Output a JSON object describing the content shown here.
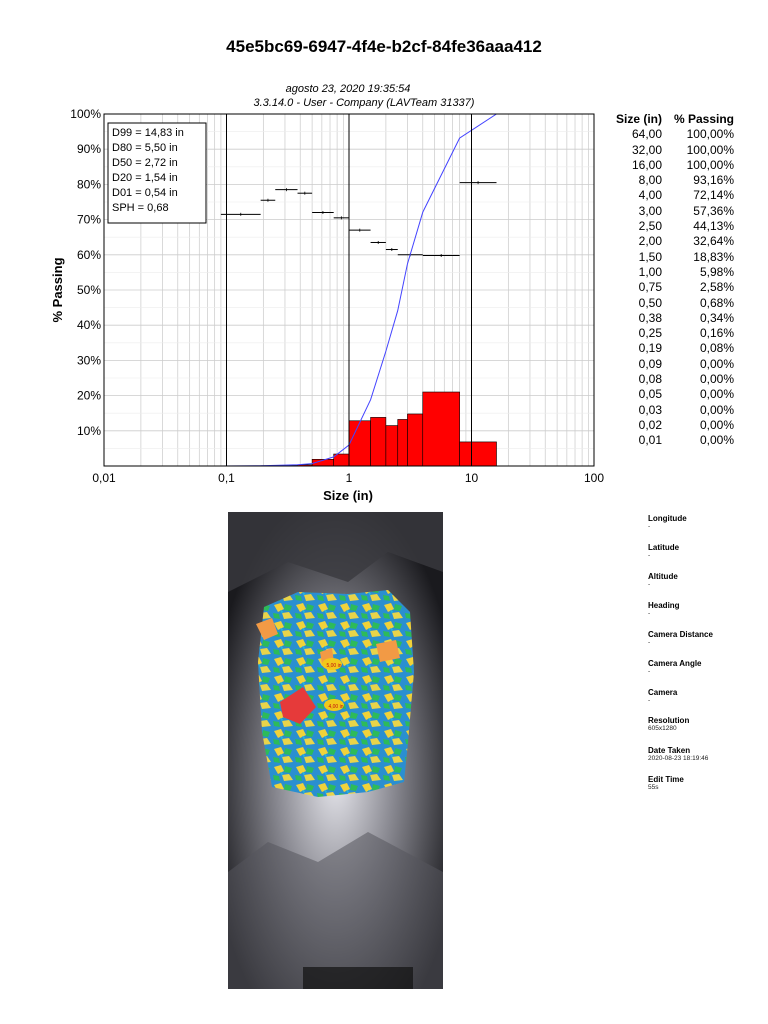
{
  "report": {
    "title": "45e5bc69-6947-4f4e-b2cf-84fe36aaa412",
    "date_line": "agosto 23, 2020 19:35:54",
    "version_line": "3.3.14.0  -  User - Company (LAVTeam 31337)"
  },
  "stats_box": [
    "D99 = 14,83 in",
    "D80 = 5,50 in",
    "D50 = 2,72 in",
    "D20 = 1,54 in",
    "D01 = 0,54 in",
    "SPH = 0,68"
  ],
  "table": {
    "col1": "Size (in)",
    "col2": "% Passing",
    "rows": [
      [
        "64,00",
        "100,00%"
      ],
      [
        "32,00",
        "100,00%"
      ],
      [
        "16,00",
        "100,00%"
      ],
      [
        "8,00",
        "93,16%"
      ],
      [
        "4,00",
        "72,14%"
      ],
      [
        "3,00",
        "57,36%"
      ],
      [
        "2,50",
        "44,13%"
      ],
      [
        "2,00",
        "32,64%"
      ],
      [
        "1,50",
        "18,83%"
      ],
      [
        "1,00",
        "5,98%"
      ],
      [
        "0,75",
        "2,58%"
      ],
      [
        "0,50",
        "0,68%"
      ],
      [
        "0,38",
        "0,34%"
      ],
      [
        "0,25",
        "0,16%"
      ],
      [
        "0,19",
        "0,08%"
      ],
      [
        "0,09",
        "0,00%"
      ],
      [
        "0,08",
        "0,00%"
      ],
      [
        "0,05",
        "0,00%"
      ],
      [
        "0,03",
        "0,00%"
      ],
      [
        "0,02",
        "0,00%"
      ],
      [
        "0,01",
        "0,00%"
      ]
    ]
  },
  "chart_data": {
    "type": "bar",
    "xlabel": "Size (in)",
    "ylabel": "% Passing",
    "xscale": "log",
    "xlim": [
      0.01,
      100
    ],
    "ylim": [
      0,
      100
    ],
    "x_ticks": [
      "0,01",
      "0,1",
      "1",
      "10",
      "100"
    ],
    "y_ticks": [
      "10%",
      "20%",
      "30%",
      "40%",
      "50%",
      "60%",
      "70%",
      "80%",
      "90%",
      "100%"
    ],
    "grid": true,
    "colors": {
      "bars": "#ff0000",
      "curve": "#4444ff",
      "marks": "#000000"
    },
    "cumulative_curve": {
      "x": [
        0.01,
        0.09,
        0.19,
        0.25,
        0.38,
        0.5,
        0.75,
        1.0,
        1.5,
        2.0,
        2.5,
        3.0,
        4.0,
        8.0,
        16.0,
        32.0,
        64.0
      ],
      "y": [
        0,
        0,
        0.08,
        0.16,
        0.34,
        0.68,
        2.58,
        5.98,
        18.83,
        32.64,
        44.13,
        57.36,
        72.14,
        93.16,
        100,
        100,
        100
      ]
    },
    "histogram": [
      {
        "x0": 0.19,
        "x1": 0.25,
        "value": 0.08
      },
      {
        "x0": 0.25,
        "x1": 0.38,
        "value": 0.18
      },
      {
        "x0": 0.38,
        "x1": 0.5,
        "value": 0.34
      },
      {
        "x0": 0.5,
        "x1": 0.75,
        "value": 1.9
      },
      {
        "x0": 0.75,
        "x1": 1.0,
        "value": 3.4
      },
      {
        "x0": 1.0,
        "x1": 1.5,
        "value": 12.85
      },
      {
        "x0": 1.5,
        "x1": 2.0,
        "value": 13.81
      },
      {
        "x0": 2.0,
        "x1": 2.5,
        "value": 11.49
      },
      {
        "x0": 2.5,
        "x1": 3.0,
        "value": 13.23
      },
      {
        "x0": 3.0,
        "x1": 4.0,
        "value": 14.78
      },
      {
        "x0": 4.0,
        "x1": 8.0,
        "value": 21.02
      },
      {
        "x0": 8.0,
        "x1": 16.0,
        "value": 6.84
      }
    ],
    "frequency_marks": [
      {
        "x0": 0.09,
        "x1": 0.19,
        "y": 71.5
      },
      {
        "x0": 0.19,
        "x1": 0.25,
        "y": 75.5
      },
      {
        "x0": 0.25,
        "x1": 0.38,
        "y": 78.5
      },
      {
        "x0": 0.38,
        "x1": 0.5,
        "y": 77.5
      },
      {
        "x0": 0.5,
        "x1": 0.75,
        "y": 72.0
      },
      {
        "x0": 0.75,
        "x1": 1.0,
        "y": 70.5
      },
      {
        "x0": 1.0,
        "x1": 1.5,
        "y": 67.0
      },
      {
        "x0": 1.5,
        "x1": 2.0,
        "y": 63.5
      },
      {
        "x0": 2.0,
        "x1": 2.5,
        "y": 61.5
      },
      {
        "x0": 2.5,
        "x1": 4.0,
        "y": 60.0
      },
      {
        "x0": 4.0,
        "x1": 8.0,
        "y": 59.8
      },
      {
        "x0": 8.0,
        "x1": 16.0,
        "y": 80.5
      }
    ],
    "reference_lines_x": [
      0.1,
      1,
      10
    ]
  },
  "metadata": [
    {
      "key": "Longitude",
      "value": "-"
    },
    {
      "key": "Latitude",
      "value": "-"
    },
    {
      "key": "Altitude",
      "value": "-"
    },
    {
      "key": "Heading",
      "value": "-"
    },
    {
      "key": "Camera Distance",
      "value": "-"
    },
    {
      "key": "Camera Angle",
      "value": "-"
    },
    {
      "key": "Camera",
      "value": "-"
    },
    {
      "key": "Resolution",
      "value": "605x1280"
    },
    {
      "key": "Date Taken",
      "value": "2020-08-23 18:19:46"
    },
    {
      "key": "Edit Time",
      "value": "55s"
    }
  ],
  "photo_labels": [
    "5,00 in",
    "4,00 in"
  ]
}
